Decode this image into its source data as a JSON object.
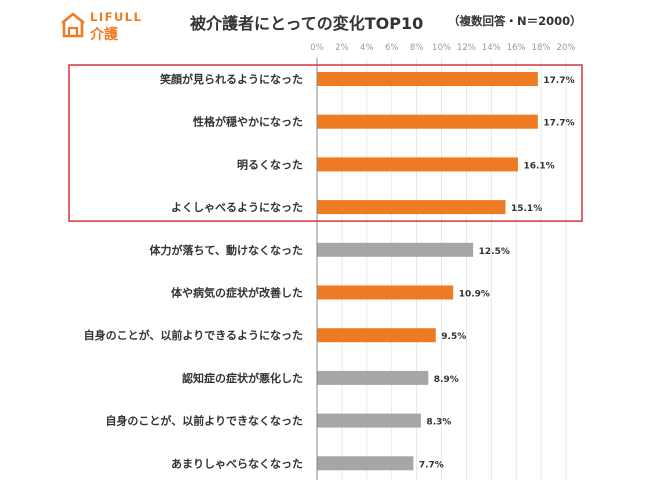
{
  "logo": {
    "brand_en": "LIFULL",
    "brand_jp": "介護"
  },
  "header": {
    "title": "被介護者にとっての変化TOP10",
    "note": "（複数回答・N＝2000）"
  },
  "colors": {
    "accent": "#ee7b22",
    "neutral": "#a6a6a6",
    "highlight_box": "#d7343a",
    "gridline": "#e3e3e3"
  },
  "chart_data": {
    "type": "bar",
    "orientation": "horizontal",
    "categories": [
      "笑顔が見られるようになった",
      "性格が穏やかになった",
      "明るくなった",
      "よくしゃべるようになった",
      "体力が落ちて、動けなくなった",
      "体や病気の症状が改善した",
      "自身のことが、以前よりできるようになった",
      "認知症の症状が悪化した",
      "自身のことが、以前よりできなくなった",
      "あまりしゃべらなくなった"
    ],
    "values": [
      17.7,
      17.7,
      16.1,
      15.1,
      12.5,
      10.9,
      9.5,
      8.9,
      8.3,
      7.7
    ],
    "value_labels": [
      "17.7%",
      "17.7%",
      "16.1%",
      "15.1%",
      "12.5%",
      "10.9%",
      "9.5%",
      "8.9%",
      "8.3%",
      "7.7%"
    ],
    "bar_colors": [
      "#ee7b22",
      "#ee7b22",
      "#ee7b22",
      "#ee7b22",
      "#a6a6a6",
      "#ee7b22",
      "#ee7b22",
      "#a6a6a6",
      "#a6a6a6",
      "#a6a6a6"
    ],
    "xlim": [
      0,
      20
    ],
    "x_ticks": [
      0,
      2,
      4,
      6,
      8,
      10,
      12,
      14,
      16,
      18,
      20
    ],
    "x_tick_labels": [
      "0%",
      "2%",
      "4%",
      "6%",
      "8%",
      "10%",
      "12%",
      "14%",
      "16%",
      "18%",
      "20%"
    ],
    "highlighted_categories": [
      0,
      1,
      2,
      3
    ],
    "grid": true,
    "axis_position": "top"
  }
}
